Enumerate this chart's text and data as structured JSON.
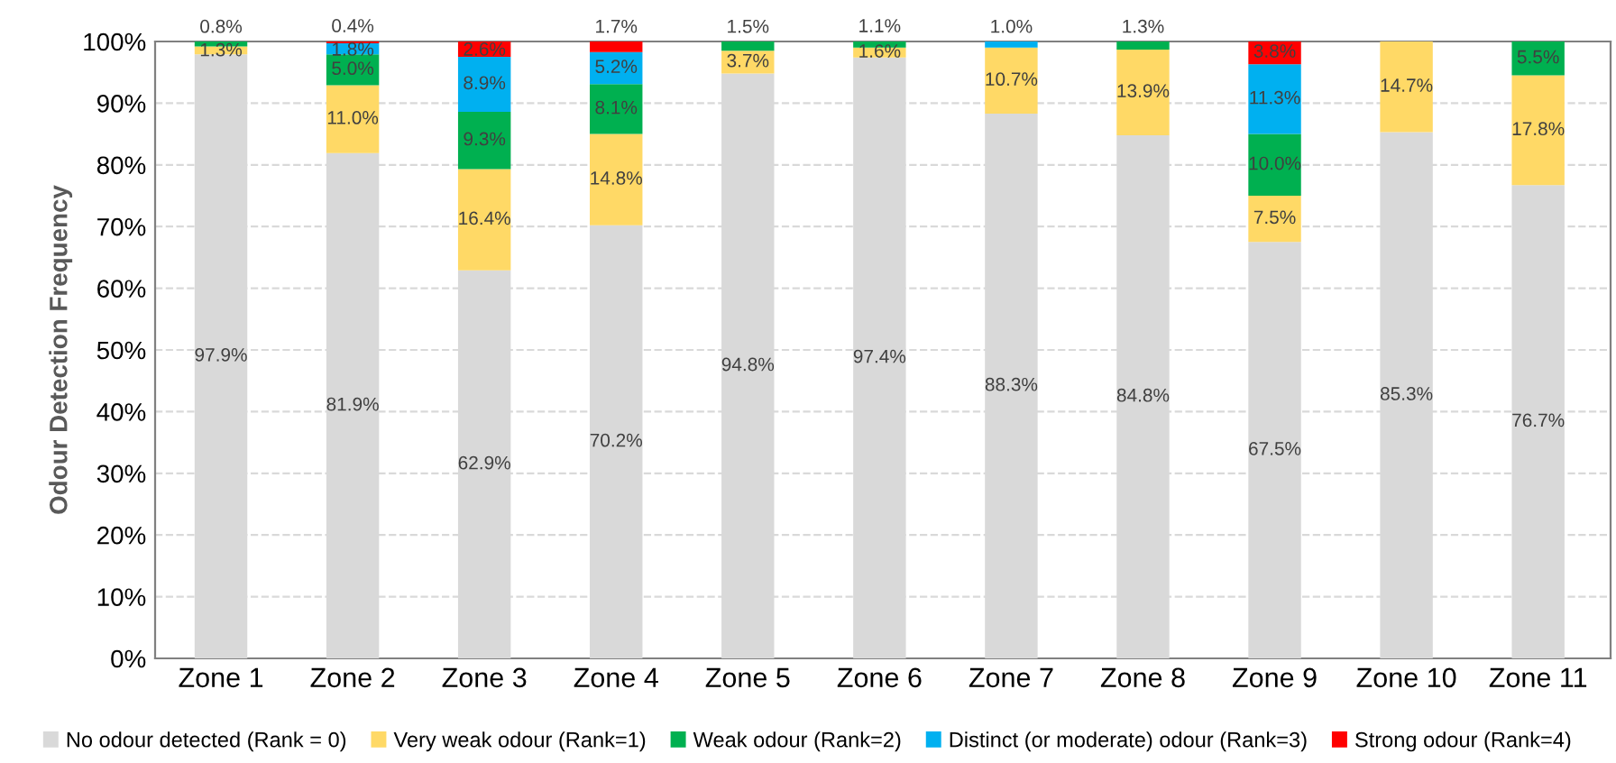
{
  "chart_data": {
    "type": "bar",
    "stacked": true,
    "ylabel": "Odour Detection Frequency",
    "categories": [
      "Zone 1",
      "Zone 2",
      "Zone 3",
      "Zone 4",
      "Zone 5",
      "Zone 6",
      "Zone 7",
      "Zone 8",
      "Zone 9",
      "Zone 10",
      "Zone 11"
    ],
    "ylim": [
      0,
      100
    ],
    "yticks": [
      {
        "value": 0,
        "label": "0%"
      },
      {
        "value": 10,
        "label": "10%"
      },
      {
        "value": 20,
        "label": "20%"
      },
      {
        "value": 30,
        "label": "30%"
      },
      {
        "value": 40,
        "label": "40%"
      },
      {
        "value": 50,
        "label": "50%"
      },
      {
        "value": 60,
        "label": "60%"
      },
      {
        "value": 70,
        "label": "70%"
      },
      {
        "value": 80,
        "label": "80%"
      },
      {
        "value": 90,
        "label": "90%"
      },
      {
        "value": 100,
        "label": "100%"
      }
    ],
    "grid": "y",
    "legend": "bottom",
    "series": [
      {
        "name": "No odour detected (Rank = 0)",
        "color": "#d9d9d9",
        "values": [
          97.9,
          81.9,
          62.9,
          70.2,
          94.8,
          97.4,
          88.3,
          84.8,
          67.5,
          85.3,
          76.7
        ],
        "value_labels": [
          "97.9%",
          "81.9%",
          "62.9%",
          "70.2%",
          "94.8%",
          "97.4%",
          "88.3%",
          "84.8%",
          "67.5%",
          "85.3%",
          "76.7%"
        ]
      },
      {
        "name": "Very weak odour (Rank=1)",
        "color": "#ffd966",
        "values": [
          1.3,
          11.0,
          16.4,
          14.8,
          3.7,
          1.6,
          10.7,
          13.9,
          7.5,
          14.7,
          17.8
        ],
        "value_labels": [
          "1.3%",
          "11.0%",
          "16.4%",
          "14.8%",
          "3.7%",
          "1.6%",
          "10.7%",
          "13.9%",
          "7.5%",
          "14.7%",
          "17.8%"
        ]
      },
      {
        "name": "Weak odour (Rank=2)",
        "color": "#00b050",
        "values": [
          0.8,
          5.0,
          9.3,
          8.1,
          1.5,
          1.1,
          null,
          1.3,
          10.0,
          null,
          5.5
        ],
        "value_labels": [
          "0.8%",
          "5.0%",
          "9.3%",
          "8.1%",
          "1.5%",
          "1.1%",
          null,
          "1.3%",
          "10.0%",
          null,
          "5.5%"
        ]
      },
      {
        "name": "Distinct (or moderate) odour (Rank=3)",
        "color": "#00b0f0",
        "values": [
          null,
          1.8,
          8.9,
          5.2,
          null,
          null,
          1.0,
          null,
          11.3,
          null,
          null
        ],
        "value_labels": [
          null,
          "1.8%",
          "8.9%",
          "5.2%",
          null,
          null,
          "1.0%",
          null,
          "11.3%",
          null,
          null
        ]
      },
      {
        "name": "Strong odour (Rank=4)",
        "color": "#ff0000",
        "values": [
          null,
          0.4,
          2.6,
          1.7,
          null,
          null,
          null,
          null,
          3.8,
          null,
          null
        ],
        "value_labels": [
          null,
          "0.4%",
          "2.6%",
          "1.7%",
          null,
          null,
          null,
          null,
          "3.8%",
          null,
          null
        ]
      }
    ]
  }
}
